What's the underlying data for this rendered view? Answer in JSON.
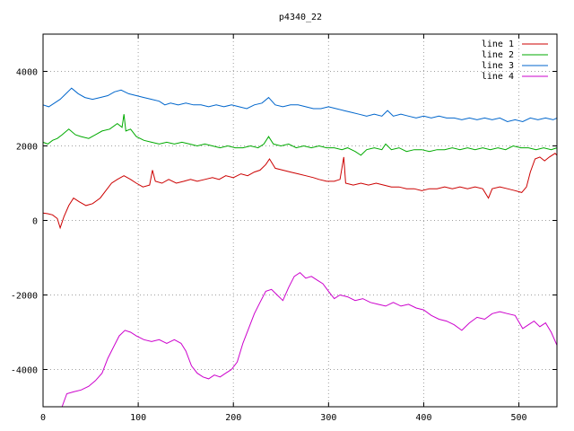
{
  "chart_data": {
    "type": "line",
    "title": "p4340_22",
    "xlabel": "",
    "ylabel": "",
    "xlim": [
      0,
      540
    ],
    "ylim": [
      -5000,
      5000
    ],
    "xticks": [
      0,
      100,
      200,
      300,
      400,
      500
    ],
    "yticks": [
      -4000,
      -2000,
      0,
      2000,
      4000
    ],
    "grid": true,
    "legend": "top-right",
    "series": [
      {
        "name": "line 1",
        "color": "#cc0000",
        "points": [
          [
            0,
            200
          ],
          [
            5,
            180
          ],
          [
            10,
            150
          ],
          [
            15,
            50
          ],
          [
            18,
            -200
          ],
          [
            22,
            100
          ],
          [
            27,
            400
          ],
          [
            32,
            600
          ],
          [
            38,
            500
          ],
          [
            45,
            400
          ],
          [
            52,
            450
          ],
          [
            60,
            600
          ],
          [
            66,
            800
          ],
          [
            72,
            1000
          ],
          [
            78,
            1100
          ],
          [
            85,
            1200
          ],
          [
            92,
            1100
          ],
          [
            98,
            1000
          ],
          [
            105,
            900
          ],
          [
            112,
            950
          ],
          [
            115,
            1350
          ],
          [
            118,
            1050
          ],
          [
            125,
            1000
          ],
          [
            132,
            1100
          ],
          [
            140,
            1000
          ],
          [
            148,
            1050
          ],
          [
            155,
            1100
          ],
          [
            162,
            1050
          ],
          [
            170,
            1100
          ],
          [
            178,
            1150
          ],
          [
            185,
            1100
          ],
          [
            192,
            1200
          ],
          [
            200,
            1150
          ],
          [
            208,
            1250
          ],
          [
            215,
            1200
          ],
          [
            222,
            1300
          ],
          [
            228,
            1350
          ],
          [
            234,
            1500
          ],
          [
            238,
            1650
          ],
          [
            244,
            1400
          ],
          [
            252,
            1350
          ],
          [
            260,
            1300
          ],
          [
            268,
            1250
          ],
          [
            276,
            1200
          ],
          [
            284,
            1150
          ],
          [
            290,
            1100
          ],
          [
            298,
            1050
          ],
          [
            306,
            1050
          ],
          [
            312,
            1100
          ],
          [
            316,
            1700
          ],
          [
            318,
            1000
          ],
          [
            326,
            950
          ],
          [
            334,
            1000
          ],
          [
            342,
            950
          ],
          [
            350,
            1000
          ],
          [
            358,
            950
          ],
          [
            366,
            900
          ],
          [
            374,
            900
          ],
          [
            382,
            850
          ],
          [
            390,
            850
          ],
          [
            398,
            800
          ],
          [
            406,
            850
          ],
          [
            414,
            850
          ],
          [
            422,
            900
          ],
          [
            430,
            850
          ],
          [
            438,
            900
          ],
          [
            446,
            850
          ],
          [
            454,
            900
          ],
          [
            462,
            850
          ],
          [
            468,
            600
          ],
          [
            472,
            850
          ],
          [
            480,
            900
          ],
          [
            488,
            850
          ],
          [
            496,
            800
          ],
          [
            503,
            750
          ],
          [
            508,
            900
          ],
          [
            512,
            1300
          ],
          [
            517,
            1650
          ],
          [
            522,
            1700
          ],
          [
            527,
            1600
          ],
          [
            532,
            1700
          ],
          [
            538,
            1800
          ],
          [
            540,
            1750
          ]
        ]
      },
      {
        "name": "line 2",
        "color": "#00aa00",
        "points": [
          [
            0,
            2100
          ],
          [
            5,
            2050
          ],
          [
            10,
            2150
          ],
          [
            15,
            2200
          ],
          [
            20,
            2300
          ],
          [
            27,
            2450
          ],
          [
            34,
            2300
          ],
          [
            40,
            2250
          ],
          [
            48,
            2200
          ],
          [
            55,
            2300
          ],
          [
            62,
            2400
          ],
          [
            70,
            2450
          ],
          [
            78,
            2600
          ],
          [
            83,
            2500
          ],
          [
            85,
            2850
          ],
          [
            87,
            2400
          ],
          [
            92,
            2450
          ],
          [
            98,
            2250
          ],
          [
            106,
            2150
          ],
          [
            114,
            2100
          ],
          [
            122,
            2050
          ],
          [
            130,
            2100
          ],
          [
            138,
            2050
          ],
          [
            146,
            2100
          ],
          [
            154,
            2050
          ],
          [
            162,
            2000
          ],
          [
            170,
            2050
          ],
          [
            178,
            2000
          ],
          [
            186,
            1950
          ],
          [
            194,
            2000
          ],
          [
            202,
            1950
          ],
          [
            210,
            1950
          ],
          [
            218,
            2000
          ],
          [
            226,
            1950
          ],
          [
            232,
            2050
          ],
          [
            237,
            2250
          ],
          [
            242,
            2050
          ],
          [
            250,
            2000
          ],
          [
            258,
            2050
          ],
          [
            266,
            1950
          ],
          [
            274,
            2000
          ],
          [
            282,
            1950
          ],
          [
            290,
            2000
          ],
          [
            298,
            1950
          ],
          [
            306,
            1950
          ],
          [
            314,
            1900
          ],
          [
            320,
            1950
          ],
          [
            328,
            1850
          ],
          [
            334,
            1750
          ],
          [
            340,
            1900
          ],
          [
            348,
            1950
          ],
          [
            356,
            1900
          ],
          [
            360,
            2050
          ],
          [
            366,
            1900
          ],
          [
            374,
            1950
          ],
          [
            382,
            1850
          ],
          [
            390,
            1900
          ],
          [
            398,
            1900
          ],
          [
            406,
            1850
          ],
          [
            414,
            1900
          ],
          [
            422,
            1900
          ],
          [
            430,
            1950
          ],
          [
            438,
            1900
          ],
          [
            446,
            1950
          ],
          [
            454,
            1900
          ],
          [
            462,
            1950
          ],
          [
            470,
            1900
          ],
          [
            478,
            1950
          ],
          [
            486,
            1900
          ],
          [
            494,
            2000
          ],
          [
            502,
            1950
          ],
          [
            510,
            1950
          ],
          [
            518,
            1900
          ],
          [
            526,
            1950
          ],
          [
            534,
            1900
          ],
          [
            540,
            1950
          ]
        ]
      },
      {
        "name": "line 3",
        "color": "#0066cc",
        "points": [
          [
            0,
            3100
          ],
          [
            6,
            3050
          ],
          [
            12,
            3150
          ],
          [
            18,
            3250
          ],
          [
            24,
            3400
          ],
          [
            30,
            3550
          ],
          [
            37,
            3400
          ],
          [
            44,
            3300
          ],
          [
            52,
            3250
          ],
          [
            60,
            3300
          ],
          [
            68,
            3350
          ],
          [
            75,
            3450
          ],
          [
            82,
            3500
          ],
          [
            90,
            3400
          ],
          [
            98,
            3350
          ],
          [
            106,
            3300
          ],
          [
            114,
            3250
          ],
          [
            122,
            3200
          ],
          [
            128,
            3100
          ],
          [
            134,
            3150
          ],
          [
            142,
            3100
          ],
          [
            150,
            3150
          ],
          [
            158,
            3100
          ],
          [
            166,
            3100
          ],
          [
            174,
            3050
          ],
          [
            182,
            3100
          ],
          [
            190,
            3050
          ],
          [
            198,
            3100
          ],
          [
            206,
            3050
          ],
          [
            214,
            3000
          ],
          [
            222,
            3100
          ],
          [
            230,
            3150
          ],
          [
            237,
            3300
          ],
          [
            244,
            3100
          ],
          [
            252,
            3050
          ],
          [
            260,
            3100
          ],
          [
            268,
            3100
          ],
          [
            276,
            3050
          ],
          [
            284,
            3000
          ],
          [
            292,
            3000
          ],
          [
            300,
            3050
          ],
          [
            308,
            3000
          ],
          [
            316,
            2950
          ],
          [
            324,
            2900
          ],
          [
            332,
            2850
          ],
          [
            340,
            2800
          ],
          [
            348,
            2850
          ],
          [
            356,
            2800
          ],
          [
            362,
            2950
          ],
          [
            368,
            2800
          ],
          [
            376,
            2850
          ],
          [
            384,
            2800
          ],
          [
            392,
            2750
          ],
          [
            400,
            2800
          ],
          [
            408,
            2750
          ],
          [
            416,
            2800
          ],
          [
            424,
            2750
          ],
          [
            432,
            2750
          ],
          [
            440,
            2700
          ],
          [
            448,
            2750
          ],
          [
            456,
            2700
          ],
          [
            464,
            2750
          ],
          [
            472,
            2700
          ],
          [
            480,
            2750
          ],
          [
            488,
            2650
          ],
          [
            496,
            2700
          ],
          [
            504,
            2650
          ],
          [
            512,
            2750
          ],
          [
            520,
            2700
          ],
          [
            528,
            2750
          ],
          [
            536,
            2700
          ],
          [
            540,
            2750
          ]
        ]
      },
      {
        "name": "line 4",
        "color": "#cc00cc",
        "points": [
          [
            20,
            -5000
          ],
          [
            25,
            -4650
          ],
          [
            32,
            -4600
          ],
          [
            40,
            -4550
          ],
          [
            48,
            -4450
          ],
          [
            55,
            -4300
          ],
          [
            62,
            -4100
          ],
          [
            68,
            -3700
          ],
          [
            74,
            -3400
          ],
          [
            80,
            -3100
          ],
          [
            86,
            -2950
          ],
          [
            92,
            -3000
          ],
          [
            98,
            -3100
          ],
          [
            106,
            -3200
          ],
          [
            114,
            -3250
          ],
          [
            122,
            -3200
          ],
          [
            130,
            -3300
          ],
          [
            138,
            -3200
          ],
          [
            145,
            -3300
          ],
          [
            150,
            -3500
          ],
          [
            156,
            -3900
          ],
          [
            162,
            -4100
          ],
          [
            168,
            -4200
          ],
          [
            174,
            -4250
          ],
          [
            180,
            -4150
          ],
          [
            186,
            -4200
          ],
          [
            192,
            -4100
          ],
          [
            198,
            -4000
          ],
          [
            204,
            -3800
          ],
          [
            210,
            -3300
          ],
          [
            216,
            -2900
          ],
          [
            222,
            -2500
          ],
          [
            228,
            -2200
          ],
          [
            234,
            -1900
          ],
          [
            240,
            -1850
          ],
          [
            246,
            -2000
          ],
          [
            252,
            -2150
          ],
          [
            258,
            -1800
          ],
          [
            264,
            -1500
          ],
          [
            270,
            -1400
          ],
          [
            276,
            -1550
          ],
          [
            282,
            -1500
          ],
          [
            288,
            -1600
          ],
          [
            294,
            -1700
          ],
          [
            300,
            -1900
          ],
          [
            306,
            -2100
          ],
          [
            312,
            -2000
          ],
          [
            320,
            -2050
          ],
          [
            328,
            -2150
          ],
          [
            336,
            -2100
          ],
          [
            344,
            -2200
          ],
          [
            352,
            -2250
          ],
          [
            360,
            -2300
          ],
          [
            368,
            -2200
          ],
          [
            376,
            -2300
          ],
          [
            384,
            -2250
          ],
          [
            392,
            -2350
          ],
          [
            400,
            -2400
          ],
          [
            408,
            -2550
          ],
          [
            416,
            -2650
          ],
          [
            424,
            -2700
          ],
          [
            432,
            -2800
          ],
          [
            440,
            -2950
          ],
          [
            448,
            -2750
          ],
          [
            456,
            -2600
          ],
          [
            464,
            -2650
          ],
          [
            472,
            -2500
          ],
          [
            480,
            -2450
          ],
          [
            488,
            -2500
          ],
          [
            496,
            -2550
          ],
          [
            504,
            -2900
          ],
          [
            510,
            -2800
          ],
          [
            516,
            -2700
          ],
          [
            522,
            -2850
          ],
          [
            528,
            -2750
          ],
          [
            534,
            -3000
          ],
          [
            540,
            -3350
          ]
        ]
      }
    ]
  }
}
